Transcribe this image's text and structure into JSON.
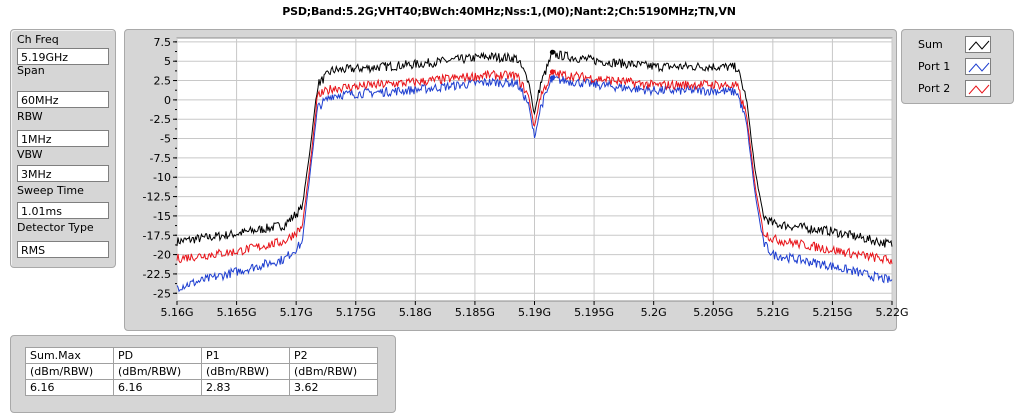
{
  "title": "PSD;Band:5.2G;VHT40;BWch:40MHz;Nss:1,(M0);Nant:2;Ch:5190MHz;TN,VN",
  "settings": {
    "items": [
      {
        "label": "Ch Freq",
        "value": "5.19GHz"
      },
      {
        "label": "Span",
        "value": "60MHz"
      },
      {
        "label": "RBW",
        "value": "1MHz"
      },
      {
        "label": "VBW",
        "value": "3MHz"
      },
      {
        "label": "Sweep Time",
        "value": "1.01ms"
      },
      {
        "label": "Detector Type",
        "value": "RMS"
      }
    ]
  },
  "legend": {
    "items": [
      {
        "label": "Sum",
        "color": "#000000"
      },
      {
        "label": "Port 1",
        "color": "#1f3fd0"
      },
      {
        "label": "Port 2",
        "color": "#e8141a"
      }
    ]
  },
  "results": {
    "headers": [
      "Sum.Max",
      "PD",
      "P1",
      "P2"
    ],
    "units": [
      "(dBm/RBW)",
      "(dBm/RBW)",
      "(dBm/RBW)",
      "(dBm/RBW)"
    ],
    "values": [
      "6.16",
      "6.16",
      "2.83",
      "3.62"
    ]
  },
  "chart_data": {
    "type": "line",
    "x_ticks": [
      "5.16G",
      "5.165G",
      "5.17G",
      "5.175G",
      "5.18G",
      "5.185G",
      "5.19G",
      "5.195G",
      "5.2G",
      "5.205G",
      "5.21G",
      "5.215G",
      "5.22G"
    ],
    "y_ticks": [
      "7.5",
      "5",
      "2.5",
      "0",
      "-2.5",
      "-5",
      "-7.5",
      "-10",
      "-12.5",
      "-15",
      "-17.5",
      "-20",
      "-22.5",
      "-25"
    ],
    "xlim": [
      5.16,
      5.22
    ],
    "ylim": [
      -26,
      8
    ],
    "series": [
      {
        "name": "Sum",
        "color": "#000000",
        "points": [
          [
            5.16,
            -18.3
          ],
          [
            5.165,
            -17.3
          ],
          [
            5.169,
            -16.2
          ],
          [
            5.1705,
            -14
          ],
          [
            5.1712,
            -6
          ],
          [
            5.1718,
            2
          ],
          [
            5.173,
            3.8
          ],
          [
            5.18,
            4.6
          ],
          [
            5.186,
            5.6
          ],
          [
            5.1885,
            5.4
          ],
          [
            5.1895,
            2.5
          ],
          [
            5.19,
            -1.8
          ],
          [
            5.1905,
            2
          ],
          [
            5.1915,
            5.9
          ],
          [
            5.195,
            5.1
          ],
          [
            5.2,
            4.3
          ],
          [
            5.205,
            4.3
          ],
          [
            5.207,
            4.2
          ],
          [
            5.2078,
            0
          ],
          [
            5.2085,
            -9
          ],
          [
            5.2092,
            -15
          ],
          [
            5.21,
            -16
          ],
          [
            5.215,
            -17
          ],
          [
            5.22,
            -18.7
          ]
        ]
      },
      {
        "name": "Port 1",
        "color": "#1f3fd0",
        "points": [
          [
            5.16,
            -24.2
          ],
          [
            5.165,
            -22.2
          ],
          [
            5.169,
            -20.6
          ],
          [
            5.1705,
            -18.5
          ],
          [
            5.1712,
            -9
          ],
          [
            5.1718,
            -1
          ],
          [
            5.173,
            0.6
          ],
          [
            5.18,
            1.3
          ],
          [
            5.186,
            2.3
          ],
          [
            5.1885,
            2.2
          ],
          [
            5.1895,
            -0.5
          ],
          [
            5.19,
            -5
          ],
          [
            5.1905,
            -1
          ],
          [
            5.1915,
            2.7
          ],
          [
            5.195,
            2
          ],
          [
            5.2,
            1.2
          ],
          [
            5.205,
            1.2
          ],
          [
            5.207,
            1
          ],
          [
            5.2078,
            -3
          ],
          [
            5.2085,
            -12
          ],
          [
            5.2092,
            -18.5
          ],
          [
            5.21,
            -20
          ],
          [
            5.215,
            -21.5
          ],
          [
            5.22,
            -23.4
          ]
        ]
      },
      {
        "name": "Port 2",
        "color": "#e8141a",
        "points": [
          [
            5.16,
            -20.5
          ],
          [
            5.165,
            -19.6
          ],
          [
            5.169,
            -18.3
          ],
          [
            5.1705,
            -16.5
          ],
          [
            5.1712,
            -8
          ],
          [
            5.1718,
            0.5
          ],
          [
            5.173,
            1.5
          ],
          [
            5.18,
            2.3
          ],
          [
            5.186,
            3.2
          ],
          [
            5.1885,
            3.1
          ],
          [
            5.1895,
            0.5
          ],
          [
            5.19,
            -3.5
          ],
          [
            5.1905,
            0.5
          ],
          [
            5.1915,
            3.4
          ],
          [
            5.195,
            2.8
          ],
          [
            5.2,
            1.9
          ],
          [
            5.205,
            2
          ],
          [
            5.207,
            1.8
          ],
          [
            5.2078,
            -2
          ],
          [
            5.2085,
            -11
          ],
          [
            5.2092,
            -17
          ],
          [
            5.21,
            -18
          ],
          [
            5.215,
            -19.4
          ],
          [
            5.22,
            -20.8
          ]
        ]
      }
    ],
    "markers": [
      {
        "series": "Sum",
        "x": 5.1915,
        "y": 6.16
      },
      {
        "series": "Port 1",
        "x": 5.1915,
        "y": 2.83
      },
      {
        "series": "Port 2",
        "x": 5.1915,
        "y": 3.62
      }
    ],
    "grid": true,
    "legend_position": "right"
  }
}
